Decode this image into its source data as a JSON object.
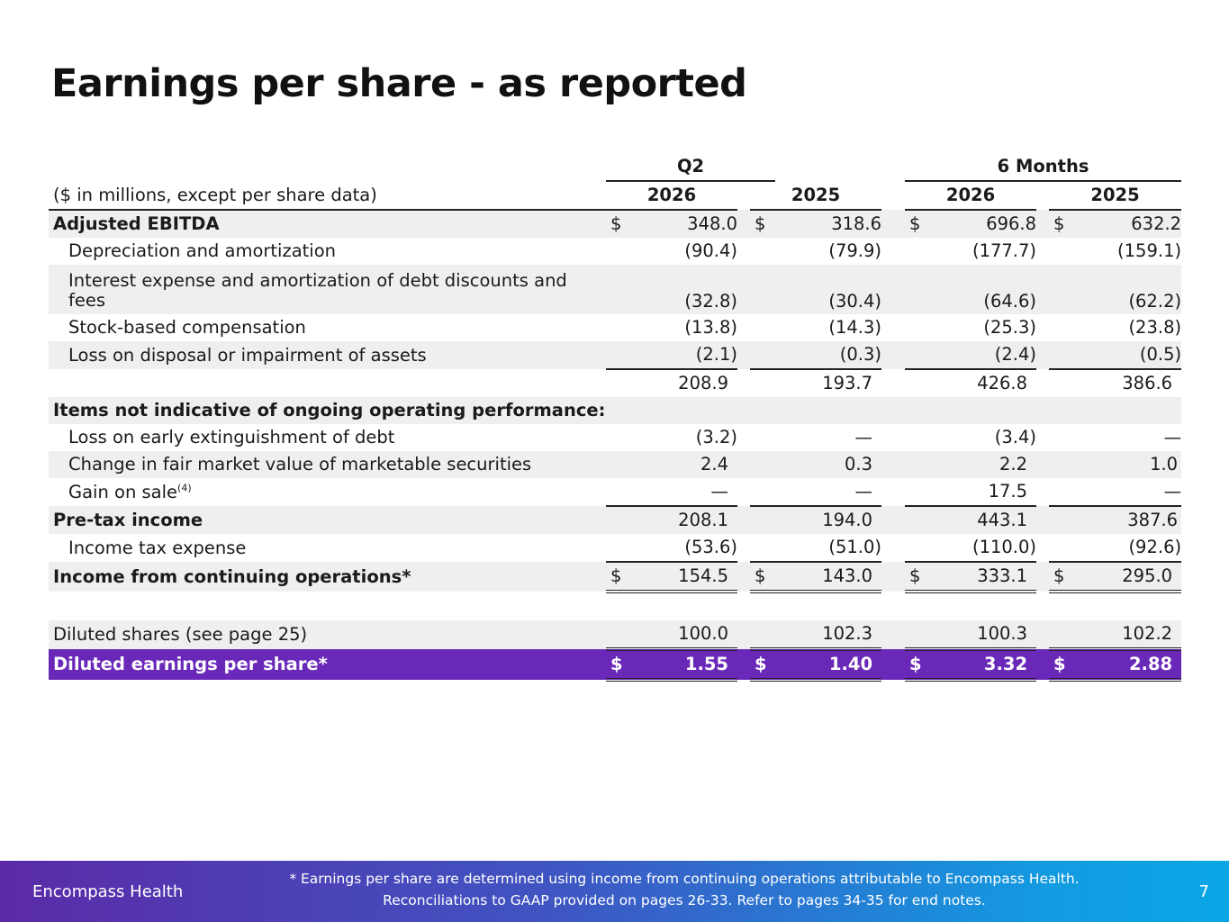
{
  "title": "Earnings per share - as reported",
  "table": {
    "group_headers": [
      "Q2",
      "6 Months"
    ],
    "caption": "($ in millions, except per share data)",
    "years": [
      "2026",
      "2025",
      "2026",
      "2025"
    ],
    "rows": [
      {
        "label": "Adjusted EBITDA",
        "values": [
          "$",
          "348.0",
          "$",
          "318.6",
          "$",
          "696.8",
          "$",
          "632.2"
        ]
      },
      {
        "label": "Depreciation and amortization",
        "values": [
          "",
          "(90.4)",
          "",
          "(79.9)",
          "",
          "(177.7)",
          "",
          "(159.1)"
        ]
      },
      {
        "label": "Interest expense and amortization of debt discounts and fees",
        "values": [
          "",
          "(32.8)",
          "",
          "(30.4)",
          "",
          "(64.6)",
          "",
          "(62.2)"
        ]
      },
      {
        "label": "Stock-based compensation",
        "values": [
          "",
          "(13.8)",
          "",
          "(14.3)",
          "",
          "(25.3)",
          "",
          "(23.8)"
        ]
      },
      {
        "label": "Loss on disposal or impairment of assets",
        "values": [
          "",
          "(2.1)",
          "",
          "(0.3)",
          "",
          "(2.4)",
          "",
          "(0.5)"
        ]
      },
      {
        "label": "",
        "values": [
          "",
          "208.9",
          "",
          "193.7",
          "",
          "426.8",
          "",
          "386.6"
        ]
      },
      {
        "label": "Items not indicative of ongoing operating performance:",
        "values": []
      },
      {
        "label": "Loss on early extinguishment of debt",
        "values": [
          "",
          "(3.2)",
          "",
          "—",
          "",
          "(3.4)",
          "",
          "—"
        ]
      },
      {
        "label": "Change in fair market value of marketable securities",
        "values": [
          "",
          "2.4",
          "",
          "0.3",
          "",
          "2.2",
          "",
          "1.0"
        ]
      },
      {
        "label": "Gain on sale",
        "sup": "(4)",
        "values": [
          "",
          "—",
          "",
          "—",
          "",
          "17.5",
          "",
          "—"
        ]
      },
      {
        "label": "Pre-tax income",
        "values": [
          "",
          "208.1",
          "",
          "194.0",
          "",
          "443.1",
          "",
          "387.6"
        ]
      },
      {
        "label": "Income tax expense",
        "values": [
          "",
          "(53.6)",
          "",
          "(51.0)",
          "",
          "(110.0)",
          "",
          "(92.6)"
        ]
      },
      {
        "label": "Income from continuing operations*",
        "values": [
          "$",
          "154.5",
          "$",
          "143.0",
          "$",
          "333.1",
          "$",
          "295.0"
        ]
      },
      {
        "label": "Diluted shares (see page 25)",
        "values": [
          "",
          "100.0",
          "",
          "102.3",
          "",
          "100.3",
          "",
          "102.2"
        ]
      },
      {
        "label": "Diluted earnings per share*",
        "values": [
          "$",
          "1.55",
          "$",
          "1.40",
          "$",
          "3.32",
          "$",
          "2.88"
        ]
      }
    ]
  },
  "footer": {
    "brand": "Encompass Health",
    "note_line1": "* Earnings per share are determined using income from continuing operations attributable to Encompass Health.",
    "note_line2": "Reconciliations to GAAP provided on pages 26-33. Refer to pages 34-35 for end notes.",
    "page_number": "7"
  },
  "colors": {
    "highlight_row": "#6a28b9",
    "row_shade": "#efefef",
    "footer_gradient_start": "#5b2aa8",
    "footer_gradient_end": "#0aa6e6"
  }
}
